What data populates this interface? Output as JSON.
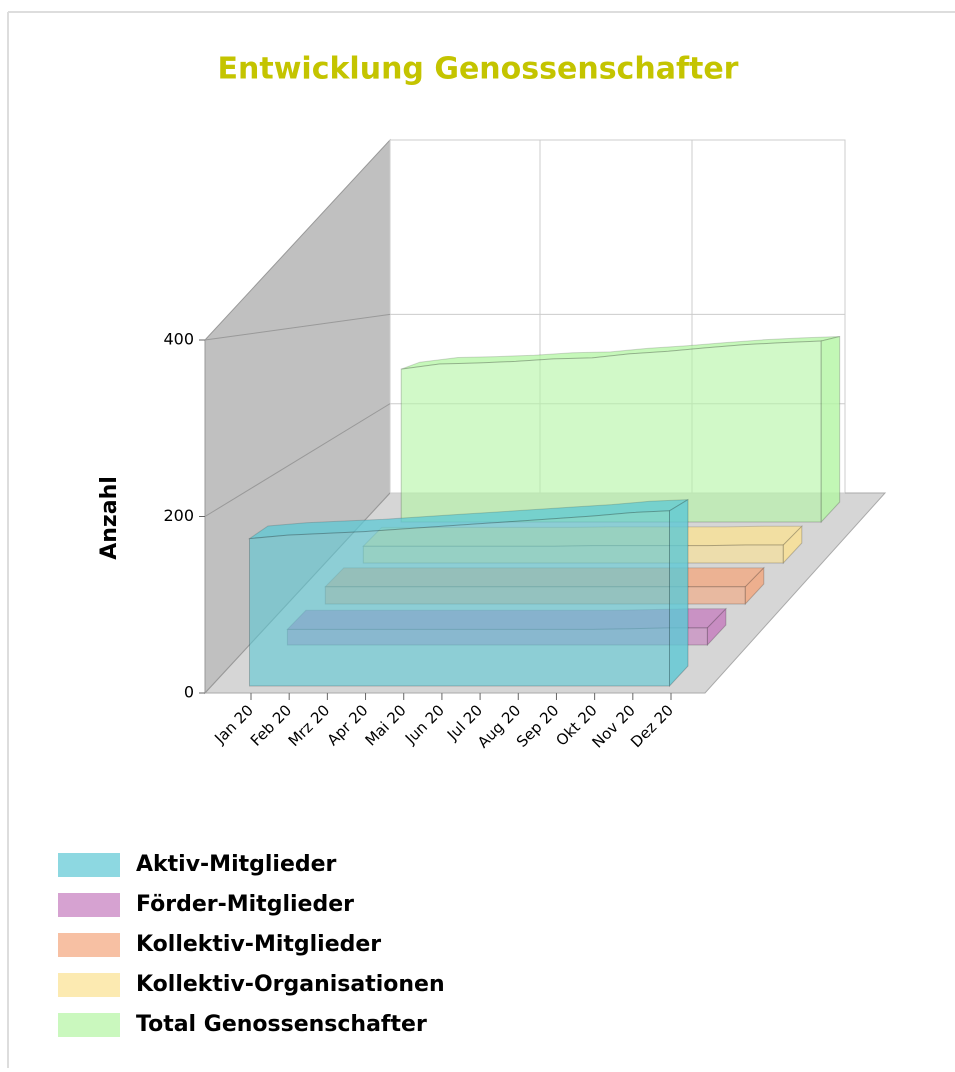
{
  "chart_data": {
    "type": "area3d",
    "title": "Entwicklung Genossenschafter",
    "y_label": "Anzahl",
    "categories": [
      "Jan 20",
      "Feb 20",
      "Mrz 20",
      "Apr 20",
      "Mai 20",
      "Jun 20",
      "Jul 20",
      "Aug 20",
      "Sep 20",
      "Okt 20",
      "Nov 20",
      "Dez 20"
    ],
    "ylim": [
      0,
      400
    ],
    "yticks": [
      0,
      200,
      400
    ],
    "series": [
      {
        "name": "Aktiv-Mitglieder",
        "color": "#5cc8d4",
        "values": [
          170,
          174,
          176,
          178,
          181,
          184,
          187,
          190,
          193,
          196,
          200,
          202
        ]
      },
      {
        "name": "Förder-Mitglieder",
        "color": "#c47bbd",
        "values": [
          20,
          20,
          20,
          20,
          20,
          20,
          20,
          20,
          20,
          21,
          22,
          22
        ]
      },
      {
        "name": "Kollektiv-Mitglieder",
        "color": "#f3a57c",
        "values": [
          25,
          25,
          25,
          25,
          25,
          25,
          25,
          25,
          25,
          25,
          25,
          25
        ]
      },
      {
        "name": "Kollektiv-Organisationen",
        "color": "#fbe190",
        "values": [
          28,
          28,
          28,
          28,
          28,
          28,
          29,
          29,
          29,
          29,
          30,
          30
        ]
      },
      {
        "name": "Total Genossenschafter",
        "color": "#b3f5a3",
        "values": [
          300,
          310,
          312,
          315,
          320,
          322,
          330,
          335,
          342,
          348,
          352,
          355
        ]
      }
    ]
  }
}
